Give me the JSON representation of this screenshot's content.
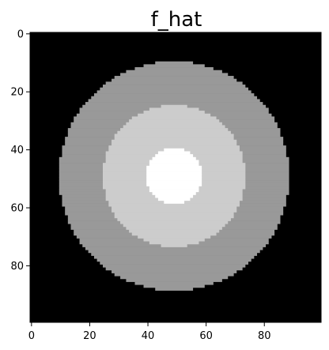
{
  "chart_data": {
    "type": "heatmap",
    "title": "f_hat",
    "xlabel": "",
    "ylabel": "",
    "grid": false,
    "legend": "none",
    "image_size": [
      100,
      100
    ],
    "xlim": [
      -0.5,
      99.5
    ],
    "ylim": [
      99.5,
      -0.5
    ],
    "y_inverted": true,
    "colormap": "gray",
    "background_value": 0,
    "center": [
      49,
      49
    ],
    "rings": [
      {
        "outer_radius": 39.5,
        "value": 0.6,
        "color": "#999999"
      },
      {
        "outer_radius": 24.5,
        "value": 0.8,
        "color": "#cccccc"
      },
      {
        "outer_radius": 9.5,
        "value": 1.0,
        "color": "#ffffff"
      }
    ],
    "xticks": [
      0,
      20,
      40,
      60,
      80
    ],
    "yticks": [
      0,
      20,
      40,
      60,
      80
    ],
    "xtick_labels": [
      "0",
      "20",
      "40",
      "60",
      "80"
    ],
    "ytick_labels": [
      "0",
      "20",
      "40",
      "60",
      "80"
    ]
  }
}
